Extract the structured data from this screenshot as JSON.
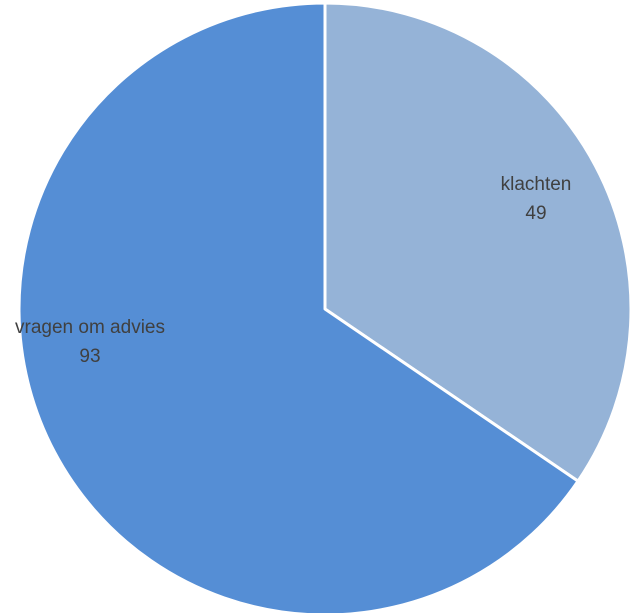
{
  "chart_data": {
    "type": "pie",
    "slices": [
      {
        "label": "klachten",
        "value": 49,
        "color": "#95b3d7"
      },
      {
        "label": "vragen om advies",
        "value": 93,
        "color": "#558ed5"
      }
    ],
    "start_angle": "12 o'clock",
    "direction": "clockwise",
    "legend": "none",
    "data_labels": "category name and value"
  }
}
